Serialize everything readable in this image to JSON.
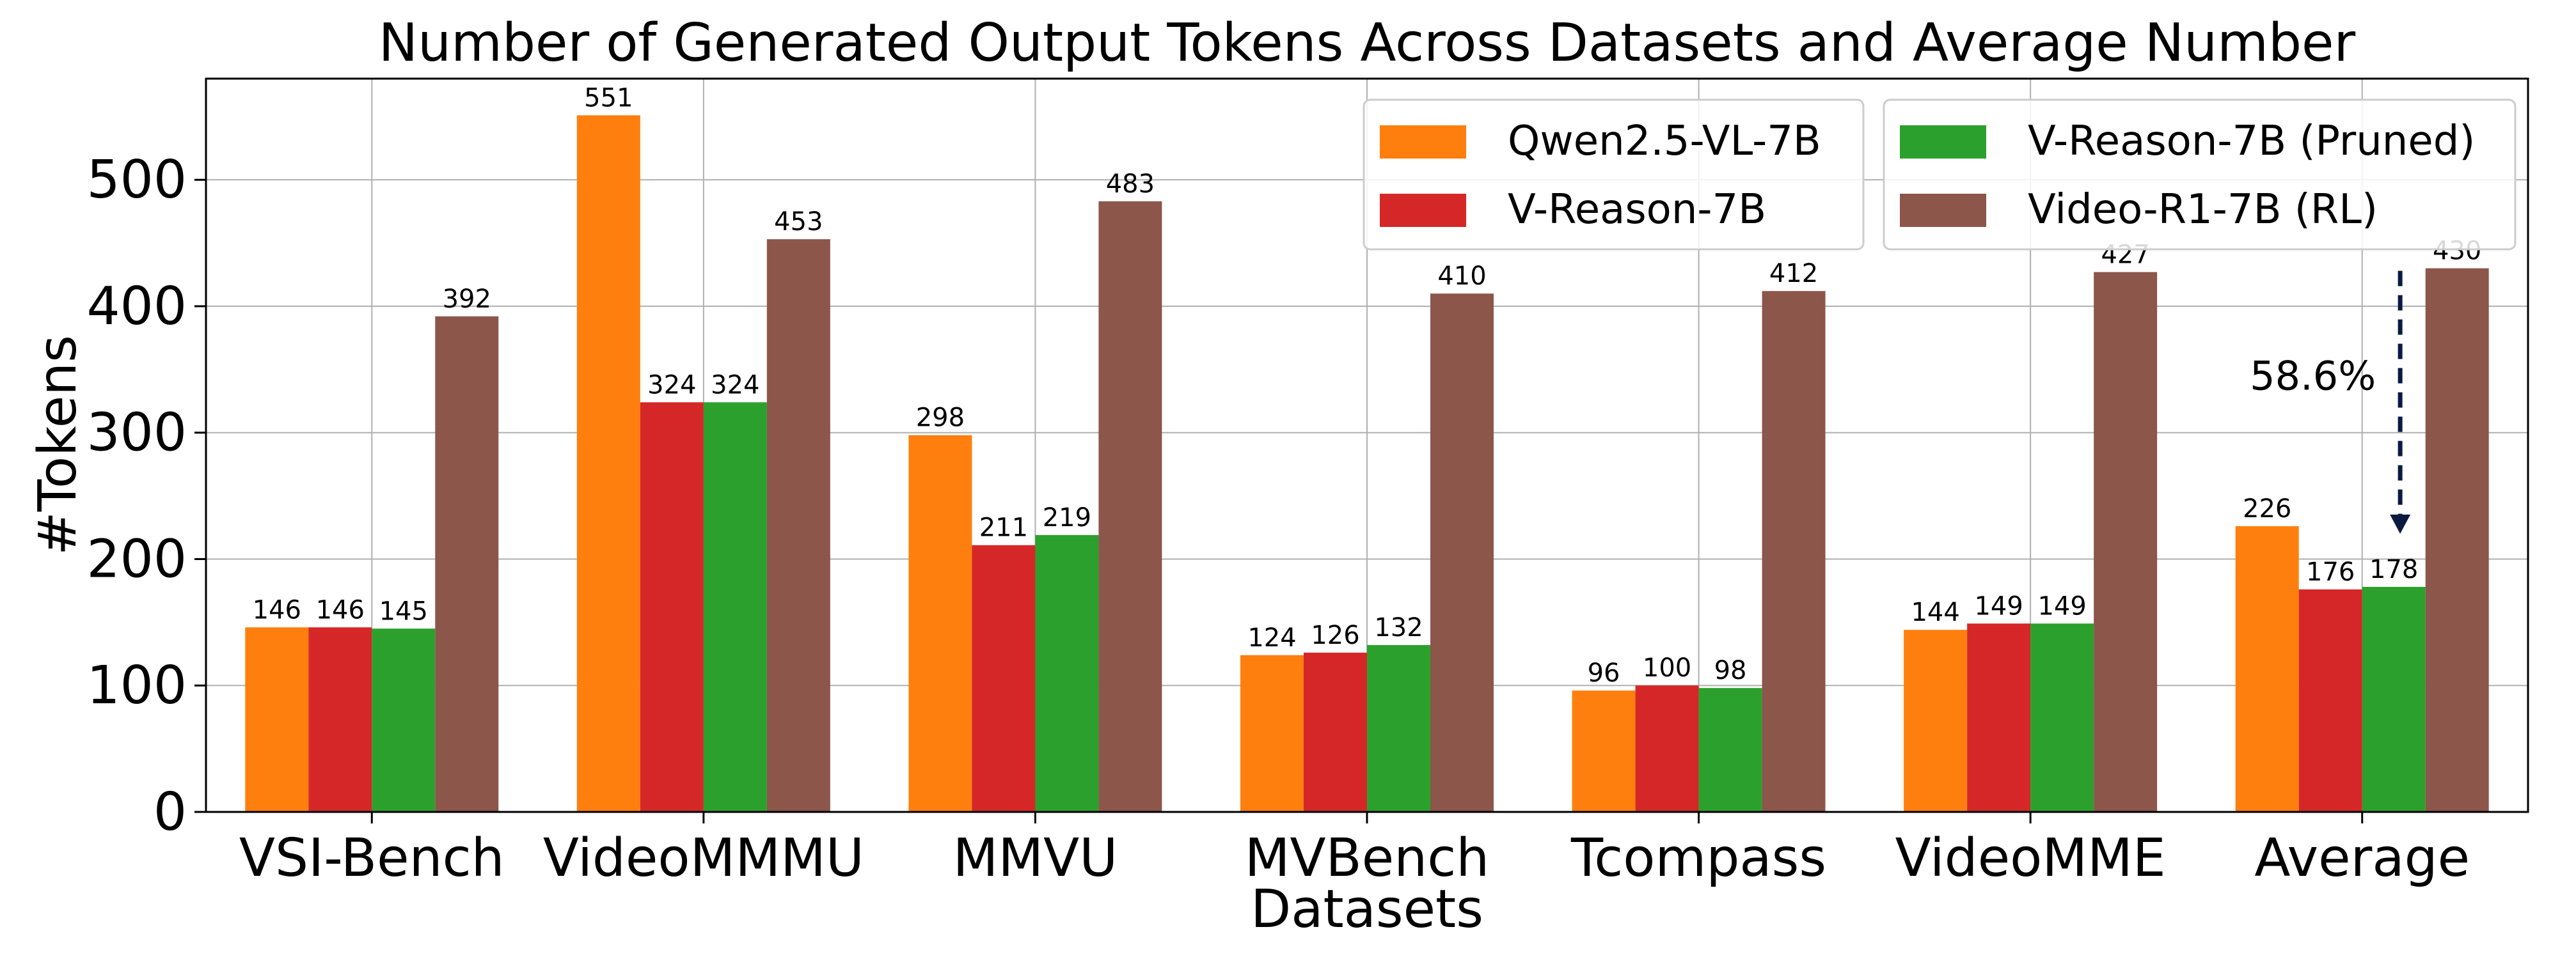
{
  "chart_data": {
    "type": "bar",
    "title": "Number of Generated Output Tokens Across Datasets and Average Number",
    "xlabel": "Datasets",
    "ylabel": "#Tokens",
    "ylim": [
      0,
      580
    ],
    "yticks": [
      0,
      100,
      200,
      300,
      400,
      500
    ],
    "grid": true,
    "legend_position": "top-right",
    "categories": [
      "VSI-Bench",
      "VideoMMMU",
      "MMVU",
      "MVBench",
      "Tcompass",
      "VideoMME",
      "Average"
    ],
    "series": [
      {
        "name": "Qwen2.5-VL-7B",
        "color": "#ff7f0e",
        "values": [
          146,
          551,
          298,
          124,
          96,
          144,
          226
        ]
      },
      {
        "name": "V-Reason-7B",
        "color": "#d62728",
        "values": [
          146,
          324,
          211,
          126,
          100,
          149,
          176
        ]
      },
      {
        "name": "V-Reason-7B (Pruned)",
        "color": "#2ca02c",
        "values": [
          145,
          324,
          219,
          132,
          98,
          149,
          178
        ]
      },
      {
        "name": "Video-R1-7B (RL)",
        "color": "#8c564b",
        "values": [
          392,
          453,
          483,
          410,
          412,
          427,
          430
        ]
      }
    ],
    "annotation": {
      "text": "58.6%",
      "category": "Average",
      "arrow_from_value": 428,
      "arrow_to_value": 220,
      "arrow_color": "#0b1a40"
    }
  }
}
